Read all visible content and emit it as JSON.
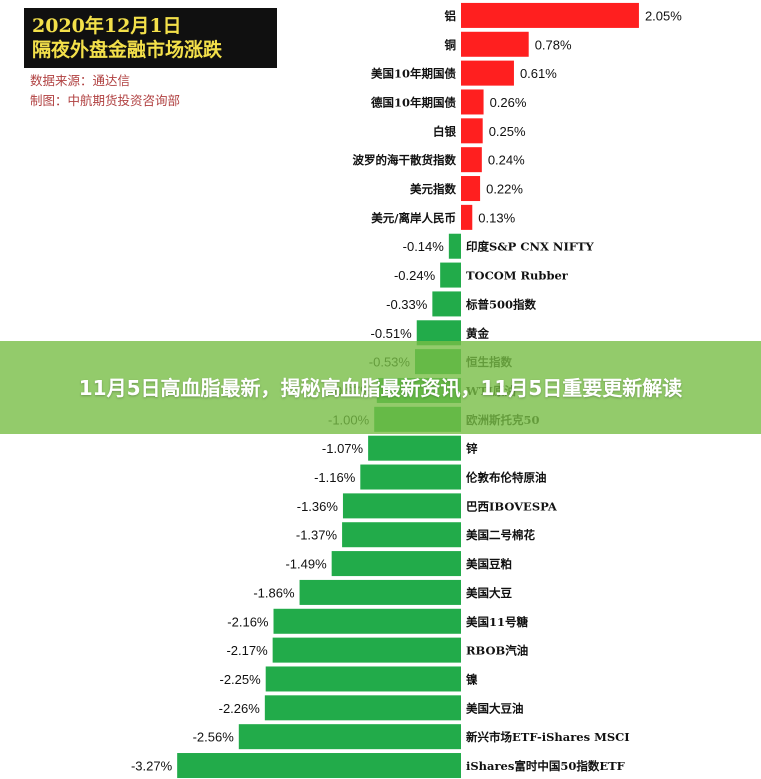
{
  "header": {
    "title_line1": "2020年12月1日",
    "title_line2": "隔夜外盘金融市场涨跌",
    "source": "数据来源：通达信",
    "maker": "制图：中航期货投资咨询部"
  },
  "banner": {
    "text": "11月5日高血脂最新，揭秘高血脂最新资讯，11月5日重要更新解读"
  },
  "colors": {
    "positive": "#ff1f1f",
    "negative": "#22ab4a",
    "title_bg": "#101010",
    "title_fg": "#f3e04a",
    "meta_fg": "#b04040",
    "banner_bg": "#78be46"
  },
  "chart_data": {
    "type": "bar",
    "orientation": "horizontal",
    "categories": [
      "铝",
      "铜",
      "美国10年期国债",
      "德国10年期国债",
      "白银",
      "波罗的海干散货指数",
      "美元指数",
      "美元/离岸人民币",
      "印度S&P CNX NIFTY",
      "TOCOM Rubber",
      "标普500指数",
      "黄金",
      "恒生指数",
      "WTI原油",
      "欧洲斯托克50",
      "锌",
      "伦敦布伦特原油",
      "巴西IBOVESPA",
      "美国二号棉花",
      "美国豆粕",
      "美国大豆",
      "美国11号糖",
      "RBOB汽油",
      "镍",
      "美国大豆油",
      "新兴市场ETF-iShares MSCI",
      "iShares富时中国50指数ETF"
    ],
    "values": [
      2.05,
      0.78,
      0.61,
      0.26,
      0.25,
      0.24,
      0.22,
      0.13,
      -0.14,
      -0.24,
      -0.33,
      -0.51,
      -0.53,
      -0.97,
      -1.0,
      -1.07,
      -1.16,
      -1.36,
      -1.37,
      -1.49,
      -1.86,
      -2.16,
      -2.17,
      -2.25,
      -2.26,
      -2.56,
      -3.27
    ],
    "value_labels": [
      "2.05%",
      "0.78%",
      "0.61%",
      "0.26%",
      "0.25%",
      "0.24%",
      "0.22%",
      "0.13%",
      "-0.14%",
      "-0.24%",
      "-0.33%",
      "-0.51%",
      "-0.53%",
      "-0.97%",
      "-1.00%",
      "-1.07%",
      "-1.16%",
      "-1.36%",
      "-1.37%",
      "-1.49%",
      "-1.86%",
      "-2.16%",
      "-2.17%",
      "-2.25%",
      "-2.26%",
      "-2.56%",
      "-3.27%"
    ],
    "unit": "%",
    "xlim": [
      -3.27,
      2.05
    ],
    "grid": false
  }
}
